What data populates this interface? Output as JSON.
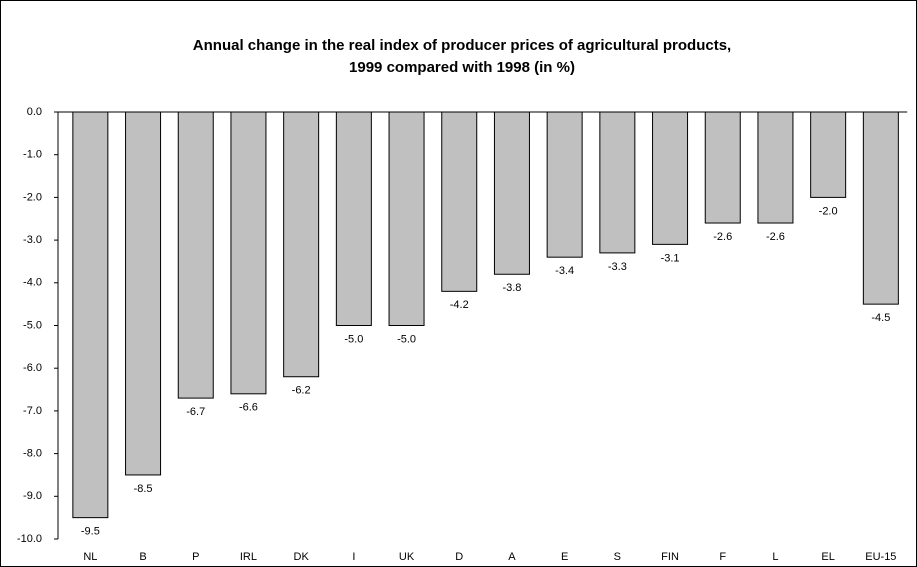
{
  "chart_data": {
    "type": "bar",
    "title": [
      "Annual change in the real index of producer prices of agricultural products,",
      "1999 compared with 1998 (in %)"
    ],
    "categories": [
      "NL",
      "B",
      "P",
      "IRL",
      "DK",
      "I",
      "UK",
      "D",
      "A",
      "E",
      "S",
      "FIN",
      "F",
      "L",
      "EL",
      "EU-15"
    ],
    "values": [
      -9.5,
      -8.5,
      -6.7,
      -6.6,
      -6.2,
      -5.0,
      -5.0,
      -4.2,
      -3.8,
      -3.4,
      -3.3,
      -3.1,
      -2.6,
      -2.6,
      -2.0,
      -4.5
    ],
    "value_labels": [
      "-9.5",
      "-8.5",
      "-6.7",
      "-6.6",
      "-6.2",
      "-5.0",
      "-5.0",
      "-4.2",
      "-3.8",
      "-3.4",
      "-3.3",
      "-3.1",
      "-2.6",
      "-2.6",
      "-2.0",
      "-4.5"
    ],
    "color": "#c0c0c0",
    "ylim": [
      -10,
      0
    ],
    "yticks": [
      {
        "value": 0,
        "label": "0.0"
      },
      {
        "value": -1,
        "label": "-1.0"
      },
      {
        "value": -2,
        "label": "-2.0"
      },
      {
        "value": -3,
        "label": "-3.0"
      },
      {
        "value": -4,
        "label": "-4.0"
      },
      {
        "value": -5,
        "label": "-5.0"
      },
      {
        "value": -6,
        "label": "-6.0"
      },
      {
        "value": -7,
        "label": "-7.0"
      },
      {
        "value": -8,
        "label": "-8.0"
      },
      {
        "value": -9,
        "label": "-9.0"
      },
      {
        "value": -10,
        "label": "-10.0"
      }
    ],
    "grid": false
  }
}
